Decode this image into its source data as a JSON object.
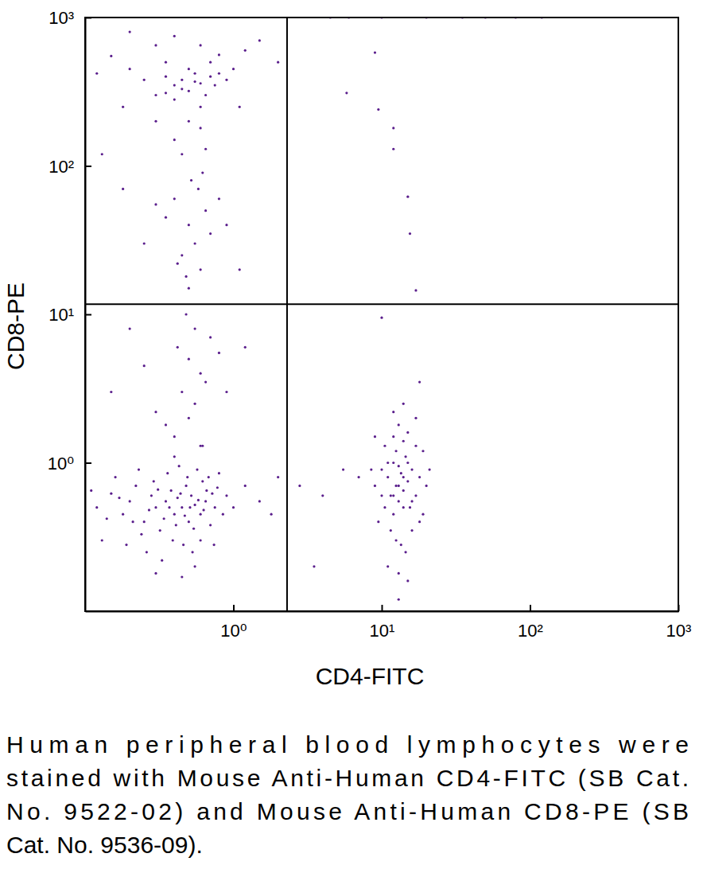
{
  "chart_data": {
    "type": "scatter",
    "x_label": "CD4-FITC",
    "y_label": "CD8-PE",
    "caption": [
      "Human peripheral blood lymphocytes were",
      "stained with Mouse Anti-Human CD4-FITC (SB Cat.",
      "No. 9522-02) and Mouse Anti-Human CD8-PE (SB",
      "Cat. No. 9536-09)."
    ],
    "log": true,
    "color": "#5a1e8c",
    "marker": "dot",
    "xlim": [
      0.1,
      1000
    ],
    "ylim": [
      0.1,
      1000
    ],
    "xticks": [
      {
        "value": 1,
        "label": "10⁰"
      },
      {
        "value": 10,
        "label": "10¹"
      },
      {
        "value": 100,
        "label": "10²"
      },
      {
        "value": 1000,
        "label": "10³"
      }
    ],
    "yticks": [
      {
        "value": 1,
        "label": "10⁰"
      },
      {
        "value": 10,
        "label": "10¹"
      },
      {
        "value": 100,
        "label": "10²"
      },
      {
        "value": 1000,
        "label": "10³"
      }
    ],
    "gates": {
      "x": 2.3,
      "y": 11.7
    },
    "x": [
      0.12,
      0.15,
      0.18,
      0.2,
      0.22,
      0.25,
      0.28,
      0.3,
      0.32,
      0.35,
      0.38,
      0.4,
      0.42,
      0.45,
      0.48,
      0.5,
      0.52,
      0.55,
      0.6,
      0.62,
      0.65,
      0.7,
      0.72,
      0.75,
      0.8,
      0.85,
      0.9,
      1.0,
      1.2,
      1.5,
      0.13,
      0.16,
      0.19,
      0.23,
      0.26,
      0.29,
      0.33,
      0.36,
      0.39,
      0.43,
      0.46,
      0.49,
      0.53,
      0.57,
      0.6,
      0.68,
      0.74,
      0.78,
      0.21,
      0.27,
      0.31,
      0.34,
      0.37,
      0.41,
      0.44,
      0.47,
      0.51,
      0.54,
      0.58,
      0.63,
      0.11,
      0.14,
      0.17,
      0.24,
      0.66,
      0.3,
      0.45,
      0.55,
      0.4,
      0.6,
      2.0,
      1.8,
      9,
      10,
      10.5,
      11,
      11.5,
      12,
      12.5,
      13,
      13.5,
      14,
      14.5,
      15,
      15.5,
      16,
      17,
      18,
      19,
      20,
      9.5,
      10.5,
      11.5,
      12,
      12.5,
      13,
      13.5,
      14,
      14.5,
      15,
      16,
      17,
      18,
      11,
      13,
      15,
      12,
      13,
      14,
      12.5,
      11,
      10,
      14,
      13,
      12,
      15,
      16,
      8.5,
      21,
      12,
      14,
      17,
      13,
      9,
      7,
      5.5,
      4,
      3.5,
      2.8,
      10,
      18,
      19,
      0.4,
      0.5,
      0.45,
      0.55,
      0.6,
      0.5,
      0.42,
      0.65,
      0.35,
      0.7,
      0.55,
      0.48,
      0.3,
      0.8,
      0.25,
      0.62,
      0.9,
      0.2,
      1.2,
      0.15,
      0.5,
      0.6,
      0.45,
      0.55,
      0.5,
      0.65,
      0.4,
      0.58,
      0.48,
      0.7,
      0.35,
      0.52,
      0.62,
      0.42,
      0.3,
      0.8,
      0.25,
      0.9,
      0.18,
      1.1,
      0.3,
      0.35,
      0.4,
      0.45,
      0.5,
      0.55,
      0.6,
      0.65,
      0.7,
      0.4,
      0.5,
      0.6,
      0.45,
      0.55,
      0.35,
      0.75,
      0.8,
      0.3,
      0.25,
      0.2,
      0.15,
      0.12,
      0.18,
      0.5,
      0.6,
      0.4,
      0.7,
      0.9,
      1.0,
      1.2,
      1.5,
      0.3,
      0.2,
      0.4,
      0.6,
      0.8,
      0.45,
      0.35,
      0.65,
      1.1,
      0.13,
      2.0,
      5.8,
      9,
      9.5,
      12,
      12,
      15,
      15.5,
      17,
      4.5,
      6,
      10,
      20,
      35,
      50,
      80,
      120
    ],
    "values": [
      0.5,
      0.62,
      0.45,
      0.55,
      0.7,
      0.4,
      0.6,
      0.5,
      0.35,
      0.55,
      0.65,
      0.45,
      0.58,
      0.5,
      0.7,
      0.4,
      0.6,
      0.52,
      0.45,
      0.75,
      0.55,
      0.38,
      0.62,
      0.5,
      0.85,
      0.45,
      0.6,
      0.5,
      0.7,
      0.55,
      0.3,
      0.8,
      0.28,
      0.9,
      0.25,
      0.75,
      0.22,
      0.85,
      0.3,
      0.95,
      0.28,
      0.8,
      0.25,
      0.9,
      0.3,
      0.8,
      0.28,
      0.68,
      0.4,
      0.48,
      0.66,
      0.42,
      0.5,
      0.38,
      0.62,
      0.44,
      0.5,
      0.36,
      0.56,
      0.48,
      0.65,
      0.42,
      0.58,
      0.33,
      0.65,
      0.18,
      0.17,
      0.2,
      1.1,
      1.3,
      0.8,
      0.45,
      0.7,
      0.9,
      0.5,
      0.8,
      0.6,
      1.0,
      0.7,
      0.55,
      0.85,
      0.65,
      1.1,
      0.75,
      0.5,
      0.9,
      0.6,
      0.8,
      1.2,
      0.7,
      0.4,
      1.3,
      0.35,
      1.5,
      0.3,
      1.8,
      0.28,
      1.4,
      0.25,
      1.6,
      0.35,
      1.3,
      0.4,
      0.2,
      0.18,
      0.16,
      0.45,
      0.95,
      0.5,
      1.2,
      1.0,
      0.6,
      0.8,
      0.7,
      0.6,
      1.0,
      0.55,
      0.9,
      0.9,
      2.2,
      2.5,
      2.0,
      0.12,
      1.5,
      0.8,
      0.9,
      0.6,
      0.2,
      0.7,
      9.5,
      3.5,
      0.45,
      1.5,
      2,
      3,
      2.5,
      4,
      5,
      6,
      3.5,
      1.8,
      7,
      8,
      10,
      2.2,
      5.5,
      4.5,
      1.3,
      3,
      8,
      6,
      3,
      15,
      20,
      25,
      30,
      40,
      50,
      60,
      70,
      18,
      35,
      45,
      80,
      90,
      22,
      55,
      60,
      30,
      40,
      70,
      20,
      300,
      400,
      350,
      380,
      320,
      420,
      360,
      300,
      400,
      280,
      450,
      250,
      330,
      370,
      310,
      350,
      420,
      200,
      380,
      450,
      550,
      420,
      250,
      200,
      180,
      150,
      500,
      380,
      450,
      600,
      700,
      650,
      800,
      750,
      650,
      560,
      120,
      500,
      130,
      250,
      120,
      500,
      310,
      580,
      240,
      180,
      130,
      62,
      35,
      14.5,
      1000,
      1000,
      1000,
      1000,
      1000,
      1000,
      1000,
      1000
    ]
  }
}
